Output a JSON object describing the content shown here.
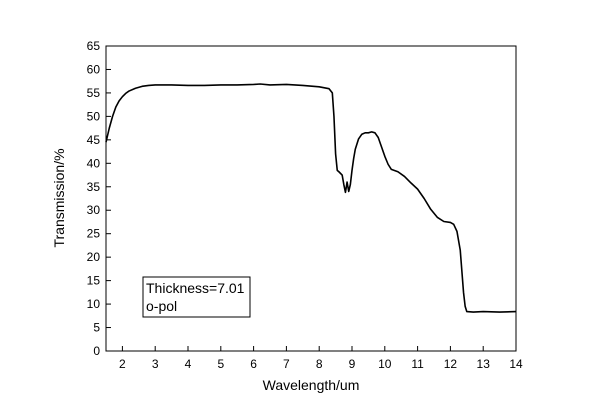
{
  "chart_data": {
    "type": "line",
    "title": "",
    "xlabel": "Wavelength/um",
    "ylabel": "Transmission/%",
    "xlim": [
      1.5,
      14
    ],
    "ylim": [
      0,
      65
    ],
    "xticks": [
      2,
      3,
      4,
      5,
      6,
      7,
      8,
      9,
      10,
      11,
      12,
      13,
      14
    ],
    "yticks": [
      0,
      5,
      10,
      15,
      20,
      25,
      30,
      35,
      40,
      45,
      50,
      55,
      60,
      65
    ],
    "grid": false,
    "annotation": {
      "lines": [
        "Thickness=7.01",
        "o-pol"
      ],
      "placement": "bottom-left"
    },
    "series": [
      {
        "name": "o-pol",
        "x": [
          1.5,
          1.6,
          1.7,
          1.8,
          1.9,
          2.0,
          2.1,
          2.2,
          2.4,
          2.6,
          2.8,
          3.0,
          3.5,
          4.0,
          4.5,
          5.0,
          5.5,
          6.0,
          6.2,
          6.5,
          7.0,
          7.5,
          8.0,
          8.3,
          8.4,
          8.45,
          8.5,
          8.55,
          8.6,
          8.7,
          8.75,
          8.8,
          8.85,
          8.9,
          8.95,
          9.0,
          9.05,
          9.1,
          9.2,
          9.3,
          9.4,
          9.5,
          9.6,
          9.7,
          9.8,
          9.9,
          10.0,
          10.1,
          10.2,
          10.4,
          10.6,
          10.8,
          11.0,
          11.2,
          11.4,
          11.6,
          11.8,
          12.0,
          12.1,
          12.2,
          12.3,
          12.35,
          12.4,
          12.45,
          12.5,
          12.7,
          13.0,
          13.5,
          14.0
        ],
        "y": [
          44.5,
          47.5,
          50,
          52,
          53.3,
          54.2,
          54.9,
          55.4,
          56.0,
          56.4,
          56.6,
          56.7,
          56.7,
          56.6,
          56.6,
          56.7,
          56.7,
          56.8,
          56.9,
          56.7,
          56.8,
          56.6,
          56.3,
          55.9,
          55.0,
          50,
          42,
          38.5,
          38.2,
          37.5,
          35.5,
          33.8,
          36,
          34,
          35.5,
          38.5,
          41,
          43,
          45.2,
          46.2,
          46.5,
          46.5,
          46.7,
          46.5,
          45.5,
          43.5,
          41.5,
          39.8,
          38.7,
          38.2,
          37.2,
          35.8,
          34.5,
          32.5,
          30.2,
          28.5,
          27.6,
          27.4,
          27.0,
          25.5,
          21.5,
          17,
          12.5,
          9.5,
          8.4,
          8.3,
          8.4,
          8.3,
          8.4
        ]
      }
    ]
  }
}
